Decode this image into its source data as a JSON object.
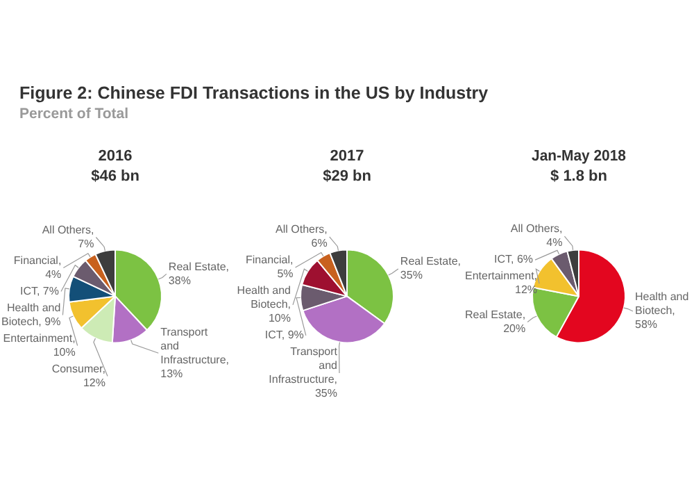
{
  "chart_data": [
    {
      "type": "other",
      "title": "Figure 2: Chinese FDI Transactions in the US by Industry",
      "subtitle": "Percent of Total"
    },
    {
      "type": "pie",
      "title": "2016",
      "subtitle": "$46 bn",
      "categories": [
        "Real Estate, 38%",
        "Transport and Infrastructure, 13%",
        "Consumer, 12%",
        "Entertainment, 10%",
        "Health and Biotech, 9%",
        "ICT, 7%",
        "Financial, 4%",
        "All Others, 7%"
      ],
      "values": [
        38,
        13,
        12,
        10,
        9,
        7,
        4,
        7
      ],
      "colors": [
        "#7cc243",
        "#b270c4",
        "#cdebb5",
        "#f2c12e",
        "#134f78",
        "#6b5b6e",
        "#c8611e",
        "#3d3d3d"
      ]
    },
    {
      "type": "pie",
      "title": "2017",
      "subtitle": "$29 bn",
      "categories": [
        "Real Estate, 35%",
        "Transport and Infrastructure, 35%",
        "ICT, 9%",
        "Health and Biotech, 10%",
        "Financial, 5%",
        "All Others, 6%"
      ],
      "values": [
        35,
        35,
        9,
        10,
        5,
        6
      ],
      "colors": [
        "#7cc243",
        "#b270c4",
        "#6b5b6e",
        "#9e1030",
        "#c8611e",
        "#3d3d3d"
      ]
    },
    {
      "type": "pie",
      "title": "Jan-May 2018",
      "subtitle": "$ 1.8 bn",
      "categories": [
        "Health and Biotech, 58%",
        "Real Estate, 20%",
        "Entertainment, 12%",
        "ICT, 6%",
        "All Others, 4%"
      ],
      "values": [
        58,
        20,
        12,
        6,
        4
      ],
      "colors": [
        "#e3061f",
        "#7cc243",
        "#f2c12e",
        "#6b5b6e",
        "#3d3d3d"
      ]
    }
  ]
}
